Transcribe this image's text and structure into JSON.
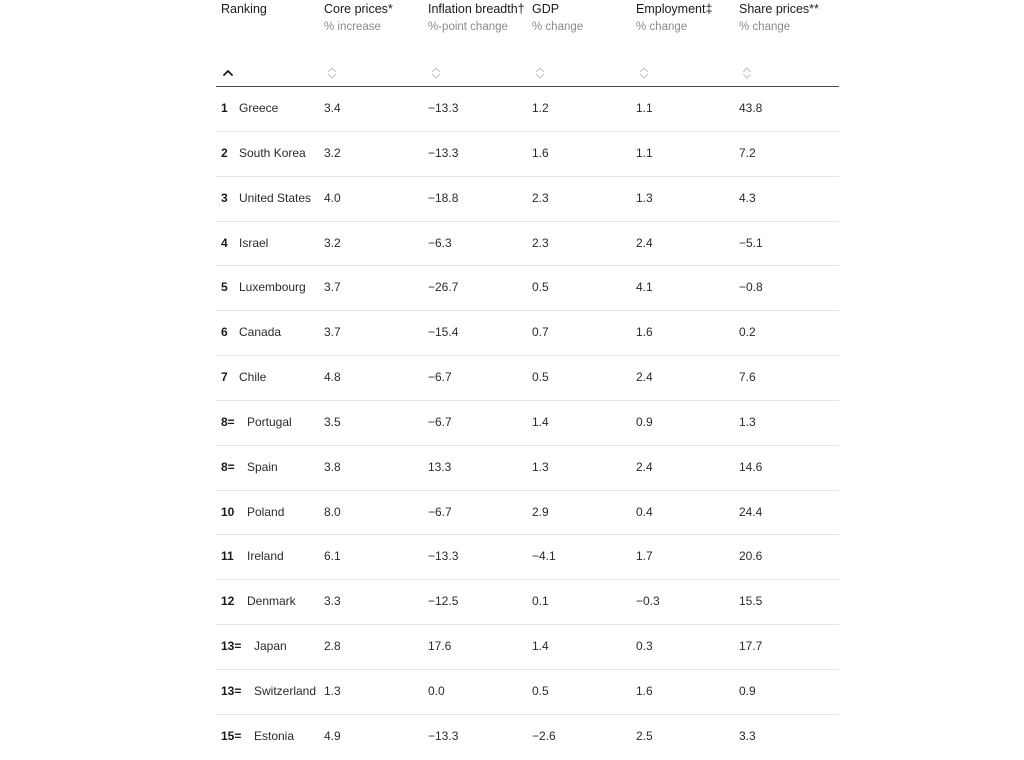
{
  "columns": [
    {
      "title": "Ranking",
      "unit": ""
    },
    {
      "title": "Core prices*",
      "unit": "% increase"
    },
    {
      "title": "Inflation breadth†",
      "unit": "%-point change"
    },
    {
      "title": "GDP",
      "unit": "% change"
    },
    {
      "title": "Employment‡",
      "unit": "% change"
    },
    {
      "title": "Share prices**",
      "unit": "% change"
    }
  ],
  "sort": {
    "active_icon": "caret-up-icon",
    "inactive_icon": "sort-updown-icon"
  },
  "rows": [
    {
      "rank": "1",
      "country": "Greece",
      "core_prices": "3.4",
      "inflation_breadth": "−13.3",
      "gdp": "1.2",
      "employment": "1.1",
      "share_prices": "43.8"
    },
    {
      "rank": "2",
      "country": "South Korea",
      "core_prices": "3.2",
      "inflation_breadth": "−13.3",
      "gdp": "1.6",
      "employment": "1.1",
      "share_prices": "7.2"
    },
    {
      "rank": "3",
      "country": "United States",
      "core_prices": "4.0",
      "inflation_breadth": "−18.8",
      "gdp": "2.3",
      "employment": "1.3",
      "share_prices": "4.3"
    },
    {
      "rank": "4",
      "country": "Israel",
      "core_prices": "3.2",
      "inflation_breadth": "−6.3",
      "gdp": "2.3",
      "employment": "2.4",
      "share_prices": "−5.1"
    },
    {
      "rank": "5",
      "country": "Luxembourg",
      "core_prices": "3.7",
      "inflation_breadth": "−26.7",
      "gdp": "0.5",
      "employment": "4.1",
      "share_prices": "−0.8"
    },
    {
      "rank": "6",
      "country": "Canada",
      "core_prices": "3.7",
      "inflation_breadth": "−15.4",
      "gdp": "0.7",
      "employment": "1.6",
      "share_prices": "0.2"
    },
    {
      "rank": "7",
      "country": "Chile",
      "core_prices": "4.8",
      "inflation_breadth": "−6.7",
      "gdp": "0.5",
      "employment": "2.4",
      "share_prices": "7.6"
    },
    {
      "rank": "8=",
      "country": "Portugal",
      "core_prices": "3.5",
      "inflation_breadth": "−6.7",
      "gdp": "1.4",
      "employment": "0.9",
      "share_prices": "1.3"
    },
    {
      "rank": "8=",
      "country": "Spain",
      "core_prices": "3.8",
      "inflation_breadth": "13.3",
      "gdp": "1.3",
      "employment": "2.4",
      "share_prices": "14.6"
    },
    {
      "rank": "10",
      "country": "Poland",
      "core_prices": "8.0",
      "inflation_breadth": "−6.7",
      "gdp": "2.9",
      "employment": "0.4",
      "share_prices": "24.4"
    },
    {
      "rank": "11",
      "country": "Ireland",
      "core_prices": "6.1",
      "inflation_breadth": "−13.3",
      "gdp": "−4.1",
      "employment": "1.7",
      "share_prices": "20.6"
    },
    {
      "rank": "12",
      "country": "Denmark",
      "core_prices": "3.3",
      "inflation_breadth": "−12.5",
      "gdp": "0.1",
      "employment": "−0.3",
      "share_prices": "15.5"
    },
    {
      "rank": "13=",
      "country": "Japan",
      "core_prices": "2.8",
      "inflation_breadth": "17.6",
      "gdp": "1.4",
      "employment": "0.3",
      "share_prices": "17.7"
    },
    {
      "rank": "13=",
      "country": "Switzerland",
      "core_prices": "1.3",
      "inflation_breadth": "0.0",
      "gdp": "0.5",
      "employment": "1.6",
      "share_prices": "0.9"
    },
    {
      "rank": "15=",
      "country": "Estonia",
      "core_prices": "4.9",
      "inflation_breadth": "−13.3",
      "gdp": "−2.6",
      "employment": "2.5",
      "share_prices": "3.3"
    }
  ]
}
